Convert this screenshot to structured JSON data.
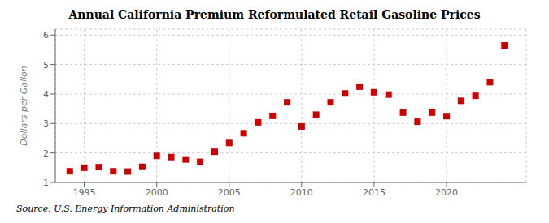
{
  "chart_data": {
    "type": "scatter",
    "title": "Annual California Premium Reformulated Retail Gasoline Prices",
    "y_label": "Dollars per Gallon",
    "annotations": [
      "Source: U.S. Energy Information Administration"
    ],
    "x": [
      1994,
      1995,
      1996,
      1997,
      1998,
      1999,
      2000,
      2001,
      2002,
      2003,
      2004,
      2005,
      2006,
      2007,
      2008,
      2009,
      2010,
      2011,
      2012,
      2013,
      2014,
      2015,
      2016,
      2017,
      2018,
      2019,
      2020,
      2021,
      2022,
      2023,
      2024
    ],
    "values": [
      1.38,
      1.5,
      1.52,
      1.38,
      1.37,
      1.53,
      1.9,
      1.86,
      1.78,
      1.7,
      2.04,
      2.34,
      2.67,
      3.04,
      3.26,
      3.72,
      2.9,
      3.3,
      3.72,
      4.02,
      4.25,
      4.06,
      3.98,
      3.37,
      3.06,
      3.37,
      3.25,
      3.77,
      3.94,
      4.4,
      5.65
    ],
    "color": "#cc0000",
    "marker": "square",
    "xlim": [
      1993.0,
      2025.5
    ],
    "ylim": [
      1,
      6.2
    ],
    "xticks": [
      1995,
      2000,
      2005,
      2010,
      2015,
      2020
    ],
    "yticks": [
      1,
      2,
      3,
      4,
      5,
      6
    ],
    "grid": true
  }
}
